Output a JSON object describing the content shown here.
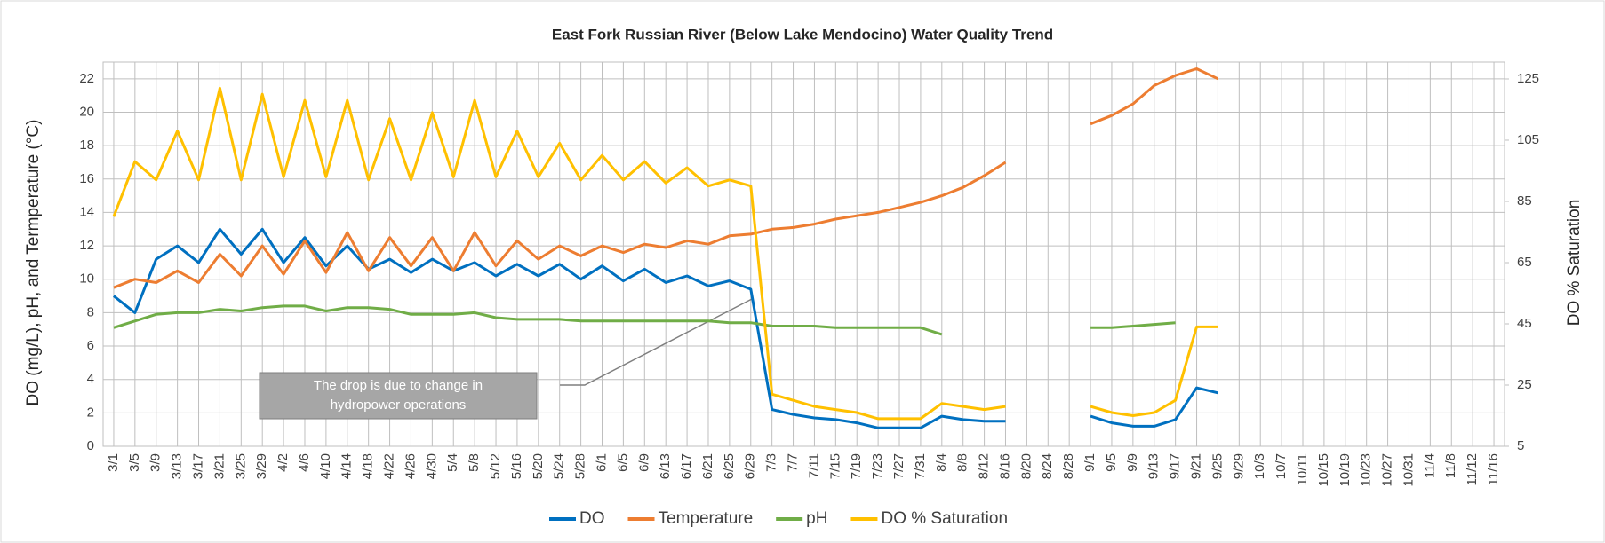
{
  "chart_data": {
    "type": "line",
    "title": "East Fork Russian River (Below Lake Mendocino) Water Quality Trend",
    "y_label": "DO (mg/L), pH, and Termperature (°C)",
    "y2_label": "DO % Saturation",
    "annotation": [
      "The drop is due to change in",
      "hydropower operations"
    ],
    "categories": [
      "3/1",
      "3/5",
      "3/9",
      "3/13",
      "3/17",
      "3/21",
      "3/25",
      "3/29",
      "4/2",
      "4/6",
      "4/10",
      "4/14",
      "4/18",
      "4/22",
      "4/26",
      "4/30",
      "5/4",
      "5/8",
      "5/12",
      "5/16",
      "5/20",
      "5/24",
      "5/28",
      "6/1",
      "6/5",
      "6/9",
      "6/13",
      "6/17",
      "6/21",
      "6/25",
      "6/29",
      "7/3",
      "7/7",
      "7/11",
      "7/15",
      "7/19",
      "7/23",
      "7/27",
      "7/31",
      "8/4",
      "8/8",
      "8/12",
      "8/16",
      "8/20",
      "8/24",
      "8/28",
      "9/1",
      "9/5",
      "9/9",
      "9/13",
      "9/17",
      "9/21",
      "9/25",
      "9/29",
      "10/3",
      "10/7",
      "10/11",
      "10/15",
      "10/19",
      "10/23",
      "10/27",
      "10/31",
      "11/4",
      "11/8",
      "11/12",
      "11/16"
    ],
    "ylim": [
      0,
      23
    ],
    "yticks": [
      0,
      2,
      4,
      6,
      8,
      10,
      12,
      14,
      16,
      18,
      20,
      22
    ],
    "y2lim": [
      5,
      130.5
    ],
    "y2ticks": [
      5,
      25,
      45,
      65,
      85,
      105,
      125
    ],
    "grid": true,
    "legend": "bottom",
    "series": [
      {
        "name": "DO",
        "color": "#0070c0",
        "values": [
          9,
          8,
          11.2,
          12,
          11,
          13,
          11.5,
          13,
          11,
          12.5,
          10.8,
          12,
          10.6,
          11.2,
          10.4,
          11.2,
          10.5,
          11,
          10.2,
          10.9,
          10.2,
          10.9,
          10,
          10.8,
          9.9,
          10.6,
          9.8,
          10.2,
          9.6,
          9.9,
          9.4,
          2.2,
          1.9,
          1.7,
          1.6,
          1.4,
          1.1,
          1.1,
          1.1,
          1.8,
          1.6,
          1.5,
          1.5,
          null,
          null,
          null,
          1.8,
          1.4,
          1.2,
          1.2,
          1.6,
          3.5,
          3.2,
          null,
          null,
          null,
          null,
          null,
          null,
          null,
          null,
          null,
          null,
          null,
          null,
          null
        ]
      },
      {
        "name": "Temperature",
        "color": "#ed7d31",
        "values": [
          9.5,
          10,
          9.8,
          10.5,
          9.8,
          11.5,
          10.2,
          12,
          10.3,
          12.3,
          10.4,
          12.8,
          10.5,
          12.5,
          10.8,
          12.5,
          10.5,
          12.8,
          10.8,
          12.3,
          11.2,
          12,
          11.4,
          12,
          11.6,
          12.1,
          11.9,
          12.3,
          12.1,
          12.6,
          12.7,
          13,
          13.1,
          13.3,
          13.6,
          13.8,
          14,
          14.3,
          14.6,
          15,
          15.5,
          16.2,
          17,
          null,
          null,
          null,
          19.3,
          19.8,
          20.5,
          21.6,
          22.2,
          22.6,
          22,
          null,
          null,
          null,
          null,
          null,
          null,
          null,
          null,
          null,
          null,
          null,
          null,
          null
        ]
      },
      {
        "name": "pH",
        "color": "#70ad47",
        "values": [
          7.1,
          7.5,
          7.9,
          8,
          8,
          8.2,
          8.1,
          8.3,
          8.4,
          8.4,
          8.1,
          8.3,
          8.3,
          8.2,
          7.9,
          7.9,
          7.9,
          8,
          7.7,
          7.6,
          7.6,
          7.6,
          7.5,
          7.5,
          7.5,
          7.5,
          7.5,
          7.5,
          7.5,
          7.4,
          7.4,
          7.2,
          7.2,
          7.2,
          7.1,
          7.1,
          7.1,
          7.1,
          7.1,
          6.7,
          null,
          null,
          null,
          null,
          null,
          null,
          7.1,
          7.1,
          7.2,
          7.3,
          7.4,
          null,
          null,
          null,
          null,
          null,
          null,
          null,
          null,
          null,
          null,
          null,
          null,
          null,
          null,
          null
        ]
      },
      {
        "name": "DO % Saturation",
        "color": "#ffc000",
        "axis": "y2",
        "values": [
          80,
          98,
          92,
          108,
          92,
          122,
          92,
          120,
          93,
          118,
          93,
          118,
          92,
          112,
          92,
          114,
          93,
          118,
          93,
          108,
          93,
          104,
          92,
          100,
          92,
          98,
          91,
          96,
          90,
          92,
          90,
          22,
          20,
          18,
          17,
          16,
          14,
          14,
          14,
          19,
          18,
          17,
          18,
          null,
          null,
          null,
          18,
          16,
          15,
          16,
          20,
          44,
          44,
          null,
          null,
          null,
          null,
          null,
          null,
          null,
          null,
          null,
          null,
          null,
          null,
          null
        ]
      }
    ]
  }
}
